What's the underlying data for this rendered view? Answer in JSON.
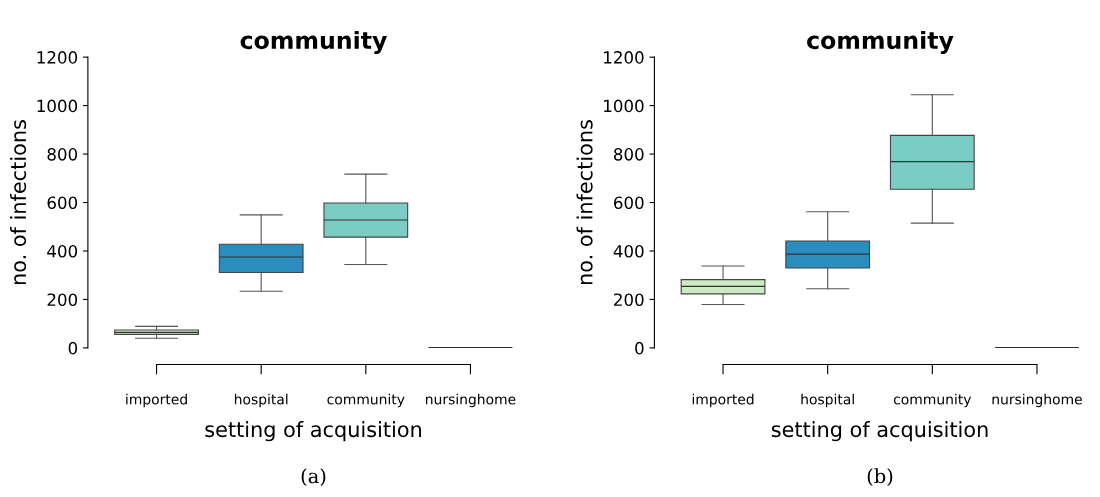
{
  "chart_data": [
    {
      "type": "box",
      "title": "community",
      "xlabel": "setting of acquisition",
      "ylabel": "no. of infections",
      "categories": [
        "imported",
        "hospital",
        "community",
        "nursinghome"
      ],
      "colors": [
        "#ccebc5",
        "#2b8cbe",
        "#7bccc4",
        "#222222"
      ],
      "ylim": [
        0,
        1200
      ],
      "yticks": [
        0,
        200,
        400,
        600,
        800,
        1000,
        1200
      ],
      "grid": false,
      "annotations": [
        "(a)"
      ],
      "boxes": [
        {
          "low": 40,
          "q1": 56,
          "median": 64,
          "q3": 74,
          "high": 89
        },
        {
          "low": 234,
          "q1": 311,
          "median": 375,
          "q3": 428,
          "high": 549
        },
        {
          "low": 344,
          "q1": 457,
          "median": 528,
          "q3": 598,
          "high": 717
        },
        {
          "low": 0,
          "q1": 0,
          "median": 0,
          "q3": 0,
          "high": 0
        }
      ]
    },
    {
      "type": "box",
      "title": "community",
      "xlabel": "setting of acquisition",
      "ylabel": "no. of infections",
      "categories": [
        "imported",
        "hospital",
        "community",
        "nursinghome"
      ],
      "colors": [
        "#ccebc5",
        "#2b8cbe",
        "#7bccc4",
        "#222222"
      ],
      "ylim": [
        0,
        1200
      ],
      "yticks": [
        0,
        200,
        400,
        600,
        800,
        1000,
        1200
      ],
      "grid": false,
      "annotations": [
        "(b)"
      ],
      "boxes": [
        {
          "low": 179,
          "q1": 223,
          "median": 254,
          "q3": 282,
          "high": 338
        },
        {
          "low": 244,
          "q1": 330,
          "median": 387,
          "q3": 441,
          "high": 562
        },
        {
          "low": 515,
          "q1": 655,
          "median": 769,
          "q3": 877,
          "high": 1045
        },
        {
          "low": 0,
          "q1": 0,
          "median": 0,
          "q3": 0,
          "high": 0
        }
      ]
    }
  ]
}
